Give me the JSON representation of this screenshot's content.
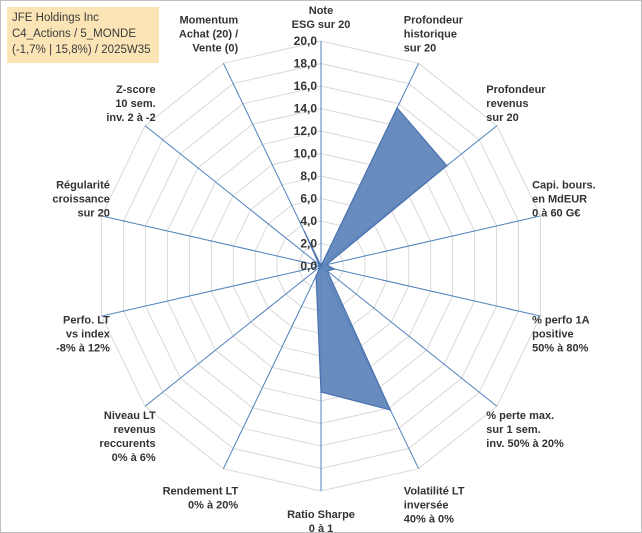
{
  "header": {
    "line1": "JFE Holdings Inc",
    "line2": "C4_Actions / 5_MONDE",
    "line3": "(-1,7% | 15,8%) / 2025W35"
  },
  "chart_data": {
    "type": "radar",
    "rmax": 20,
    "ticks": [
      "0,0",
      "2,0",
      "4,0",
      "6,0",
      "8,0",
      "10,0",
      "12,0",
      "14,0",
      "16,0",
      "18,0",
      "20,0"
    ],
    "axes": [
      {
        "label": [
          "Note",
          "ESG sur 20"
        ],
        "value": 0
      },
      {
        "label": [
          "Profondeur",
          "historique",
          "sur 20"
        ],
        "value": 15.6
      },
      {
        "label": [
          "Profondeur",
          "revenus",
          "sur 20"
        ],
        "value": 14.3
      },
      {
        "label": [
          "Capi. bours.",
          "en MdEUR",
          "0 à 60 G€"
        ],
        "value": 0.5
      },
      {
        "label": [
          "% perfo 1A",
          "positive",
          "50% à 80%"
        ],
        "value": 1.2
      },
      {
        "label": [
          "% perte max.",
          "sur 1 sem.",
          "inv. 50% à 20%"
        ],
        "value": 0.7
      },
      {
        "label": [
          "Volatilité LT",
          "inversée",
          "40% à 0%"
        ],
        "value": 14.2
      },
      {
        "label": [
          "Ratio Sharpe",
          "0 à 1"
        ],
        "value": 11.2
      },
      {
        "label": [
          "Rendement LT",
          "0% à 20%"
        ],
        "value": 1.0
      },
      {
        "label": [
          "Niveau LT",
          "revenus",
          "reccurents",
          "0% à 6%"
        ],
        "value": 0.1
      },
      {
        "label": [
          "Perfo. LT",
          "vs index",
          "-8% à 12%"
        ],
        "value": 0.1
      },
      {
        "label": [
          "Régularité",
          "croissance",
          "sur 20"
        ],
        "value": 0.1
      },
      {
        "label": [
          "Z-score",
          "10 sem.",
          "inv. 2 à -2"
        ],
        "value": 0.2
      },
      {
        "label": [
          "Momentum",
          "Achat (20) /",
          "Vente (0)"
        ],
        "value": 3.4
      }
    ],
    "colors": {
      "fill": "#5b82b8",
      "stroke": "#4a72b0",
      "grid": "#d9d9d9",
      "spoke": "#4f81bd"
    },
    "legend": "none"
  }
}
